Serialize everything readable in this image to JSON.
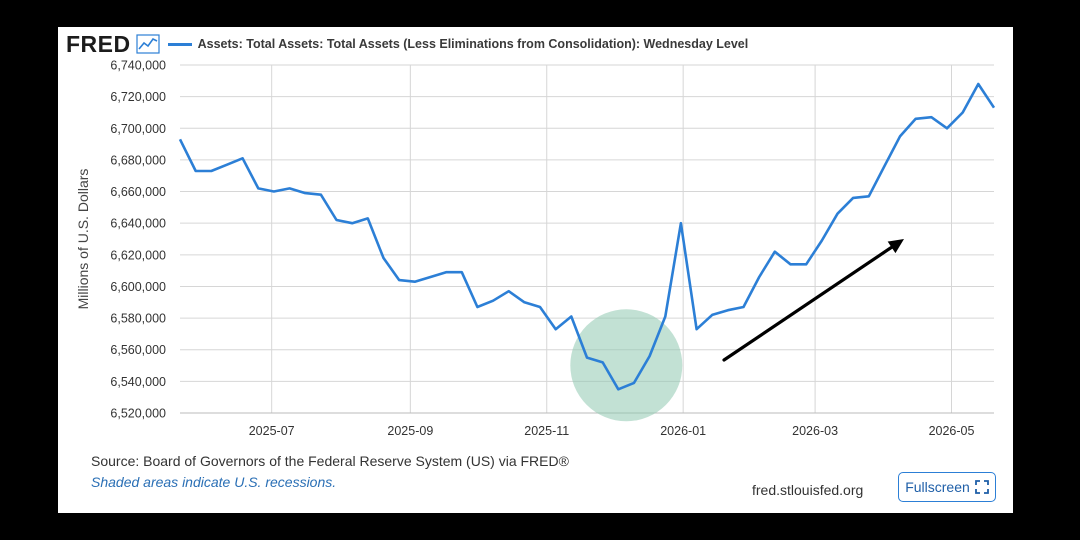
{
  "header": {
    "logo": "FRED",
    "logo_icon": "line-chart-icon",
    "series_title": "Assets: Total Assets: Total Assets (Less Eliminations from Consolidation): Wednesday Level"
  },
  "footer": {
    "source": "Source: Board of Governors of the Federal Reserve System (US) via FRED®",
    "note": "Shaded areas indicate U.S. recessions.",
    "site": "fred.stlouisfed.org",
    "fullscreen_label": "Fullscreen",
    "fullscreen_icon": "expand-icon"
  },
  "colors": {
    "line": "#2c7fd6",
    "grid": "#d6d6d6",
    "highlight_circle": "#8fc9b0",
    "arrow": "#000000"
  },
  "chart_data": {
    "type": "line",
    "title": "Assets: Total Assets: Total Assets (Less Eliminations from Consolidation): Wednesday Level",
    "xlabel": "",
    "ylabel": "Millions of U.S. Dollars",
    "ylim": [
      6520000,
      6740000
    ],
    "xlim": [
      "2025-05-21",
      "2026-05-20"
    ],
    "yticks": [
      6520000,
      6540000,
      6560000,
      6580000,
      6600000,
      6620000,
      6640000,
      6660000,
      6680000,
      6700000,
      6720000,
      6740000
    ],
    "ytick_labels": [
      "6,520,000",
      "6,540,000",
      "6,560,000",
      "6,580,000",
      "6,600,000",
      "6,620,000",
      "6,640,000",
      "6,660,000",
      "6,680,000",
      "6,700,000",
      "6,720,000",
      "6,740,000"
    ],
    "xticks": [
      "2025-07-01",
      "2025-09-01",
      "2025-11-01",
      "2026-01-01",
      "2026-03-01",
      "2026-05-01"
    ],
    "xtick_labels": [
      "2025-07",
      "2025-09",
      "2025-11",
      "2026-01",
      "2026-03",
      "2026-05"
    ],
    "grid": true,
    "legend_position": "top",
    "series": [
      {
        "name": "Assets: Total Assets: Total Assets (Less Eliminations from Consolidation): Wednesday Level",
        "x": [
          "2025-05-21",
          "2025-05-28",
          "2025-06-04",
          "2025-06-11",
          "2025-06-18",
          "2025-06-25",
          "2025-07-02",
          "2025-07-09",
          "2025-07-16",
          "2025-07-23",
          "2025-07-30",
          "2025-08-06",
          "2025-08-13",
          "2025-08-20",
          "2025-08-27",
          "2025-09-03",
          "2025-09-10",
          "2025-09-17",
          "2025-09-24",
          "2025-10-01",
          "2025-10-08",
          "2025-10-15",
          "2025-10-22",
          "2025-10-29",
          "2025-11-05",
          "2025-11-12",
          "2025-11-19",
          "2025-11-26",
          "2025-12-03",
          "2025-12-10",
          "2025-12-17",
          "2025-12-24",
          "2025-12-31",
          "2026-01-07",
          "2026-01-14",
          "2026-01-21",
          "2026-01-28",
          "2026-02-04",
          "2026-02-11",
          "2026-02-18",
          "2026-02-25",
          "2026-03-04",
          "2026-03-11",
          "2026-03-18",
          "2026-03-25",
          "2026-04-01",
          "2026-04-08",
          "2026-04-15",
          "2026-04-22",
          "2026-04-29",
          "2026-05-06",
          "2026-05-13",
          "2026-05-20"
        ],
        "values": [
          6693000,
          6673000,
          6673000,
          6677000,
          6681000,
          6662000,
          6660000,
          6662000,
          6659000,
          6658000,
          6642000,
          6640000,
          6643000,
          6618000,
          6604000,
          6603000,
          6606000,
          6609000,
          6609000,
          6587000,
          6591000,
          6597000,
          6590000,
          6587000,
          6573000,
          6581000,
          6555000,
          6552000,
          6535000,
          6539000,
          6556000,
          6581000,
          6640000,
          6573000,
          6582000,
          6585000,
          6587000,
          6606000,
          6622000,
          6614000,
          6614000,
          6629000,
          6646000,
          6656000,
          6657000,
          6676000,
          6695000,
          6706000,
          6707000,
          6700000,
          6710000,
          6728000,
          6713000
        ]
      }
    ]
  }
}
